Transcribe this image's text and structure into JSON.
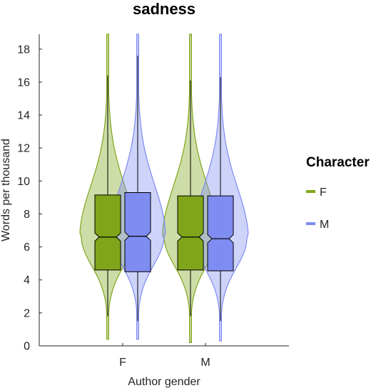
{
  "chart_data": {
    "type": "violin",
    "title": "sadness",
    "xlabel": "Author gender",
    "ylabel": "Words per thousand",
    "categories": [
      "F",
      "M"
    ],
    "ylim": [
      0,
      18.9
    ],
    "yticks": [
      0,
      2,
      4,
      6,
      8,
      10,
      12,
      14,
      16,
      18
    ],
    "legend": {
      "title": "Character",
      "position": "right",
      "entries": [
        {
          "name": "F",
          "color": "#7fa61a"
        },
        {
          "name": "M",
          "color": "#7f8cf2"
        }
      ]
    },
    "series": [
      {
        "name": "F",
        "color": "#7fa61a",
        "groups": [
          {
            "category": "F",
            "whisker_low": 1.8,
            "q1": 4.6,
            "median": 6.6,
            "q3": 9.15,
            "whisker_high": 16.4,
            "notch_low": 6.35,
            "notch_high": 6.85,
            "min": 0.4,
            "max": 18.9
          },
          {
            "category": "M",
            "whisker_low": 1.8,
            "q1": 4.6,
            "median": 6.6,
            "q3": 9.1,
            "whisker_high": 16.1,
            "notch_low": 6.35,
            "notch_high": 6.85,
            "min": 0.2,
            "max": 18.9
          }
        ]
      },
      {
        "name": "M",
        "color": "#7f8cf2",
        "groups": [
          {
            "category": "F",
            "whisker_low": 1.5,
            "q1": 4.5,
            "median": 6.65,
            "q3": 9.3,
            "whisker_high": 17.6,
            "notch_low": 6.4,
            "notch_high": 6.9,
            "min": 0.4,
            "max": 18.9
          },
          {
            "category": "M",
            "whisker_low": 1.5,
            "q1": 4.55,
            "median": 6.5,
            "q3": 9.1,
            "whisker_high": 16.3,
            "notch_low": 6.25,
            "notch_high": 6.75,
            "min": 0.3,
            "max": 18.9
          }
        ]
      }
    ]
  }
}
